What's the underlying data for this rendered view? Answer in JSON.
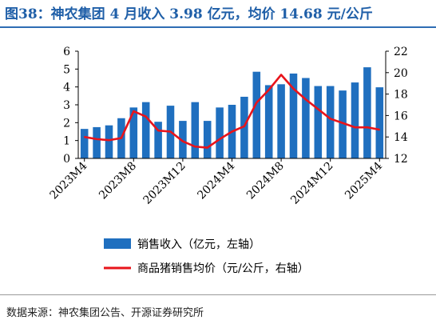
{
  "title": "图38：神农集团 4 月收入 3.98 亿元，均价 14.68 元/公斤",
  "source": "数据来源：神农集团公告、开源证券研究所",
  "chart_data": {
    "type": "bar+line",
    "x_tick_labels": [
      "2023M4",
      "2023M8",
      "2023M12",
      "2024M4",
      "2024M8",
      "2024M12",
      "2025M4"
    ],
    "x": [
      "2023M4",
      "2023M5",
      "2023M6",
      "2023M7",
      "2023M8",
      "2023M9",
      "2023M10",
      "2023M11",
      "2023M12",
      "2024M1",
      "2024M2",
      "2024M3",
      "2024M4",
      "2024M5",
      "2024M6",
      "2024M7",
      "2024M8",
      "2024M9",
      "2024M10",
      "2024M11",
      "2024M12",
      "2025M1",
      "2025M2",
      "2025M3",
      "2025M4"
    ],
    "series": [
      {
        "name": "销售收入（亿元，左轴）",
        "type": "bar",
        "axis": "left",
        "color": "#1f6fbf",
        "values": [
          1.65,
          1.75,
          1.85,
          2.25,
          2.85,
          3.15,
          2.05,
          2.95,
          2.1,
          3.15,
          2.1,
          2.85,
          3.0,
          3.45,
          4.85,
          4.1,
          4.15,
          4.75,
          4.5,
          4.05,
          4.05,
          3.8,
          4.25,
          5.1,
          3.98
        ]
      },
      {
        "name": "商品猪销售均价（元/公斤，右轴）",
        "type": "line",
        "axis": "right",
        "color": "#e8141b",
        "values": [
          14.0,
          13.8,
          13.7,
          13.9,
          16.4,
          15.9,
          14.6,
          14.5,
          13.6,
          13.1,
          13.0,
          13.8,
          14.5,
          15.0,
          17.2,
          18.4,
          19.8,
          18.5,
          17.5,
          16.6,
          15.7,
          15.3,
          14.9,
          14.9,
          14.68
        ]
      }
    ],
    "y_left": {
      "ticks": [
        "0",
        "1",
        "2",
        "3",
        "4",
        "5",
        "6"
      ],
      "range": [
        0,
        6
      ]
    },
    "y_right": {
      "ticks": [
        "12",
        "14",
        "16",
        "18",
        "20",
        "22"
      ],
      "range": [
        12,
        22
      ]
    },
    "grid": false,
    "legend_position": "bottom"
  }
}
